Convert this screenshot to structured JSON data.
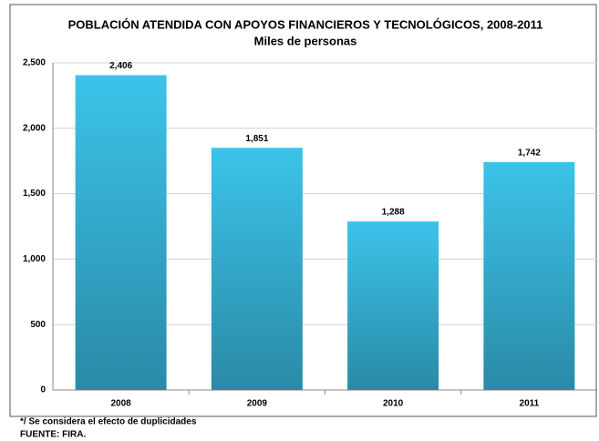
{
  "chart_data": {
    "type": "bar",
    "title": "POBLACIÓN ATENDIDA CON APOYOS FINANCIEROS Y TECNOLÓGICOS, 2008-2011",
    "subtitle": "Miles de personas",
    "categories": [
      "2008",
      "2009",
      "2010",
      "2011"
    ],
    "values": [
      2406,
      1851,
      1288,
      1742
    ],
    "value_labels": [
      "2,406",
      "1,851",
      "1,288",
      "1,742"
    ],
    "color": "#3cc3ea",
    "ylim": [
      0,
      2500
    ],
    "yticks": [
      0,
      500,
      {
        "value": 1000,
        "label": "1,000"
      },
      {
        "value": 1500,
        "label": "1,500"
      },
      {
        "value": 2000,
        "label": "2,000"
      },
      {
        "value": 2500,
        "label": "2,500"
      }
    ],
    "grid": true,
    "notes": [
      "*/ Se considera el efecto de duplicidades",
      "FUENTE: FIRA."
    ]
  }
}
